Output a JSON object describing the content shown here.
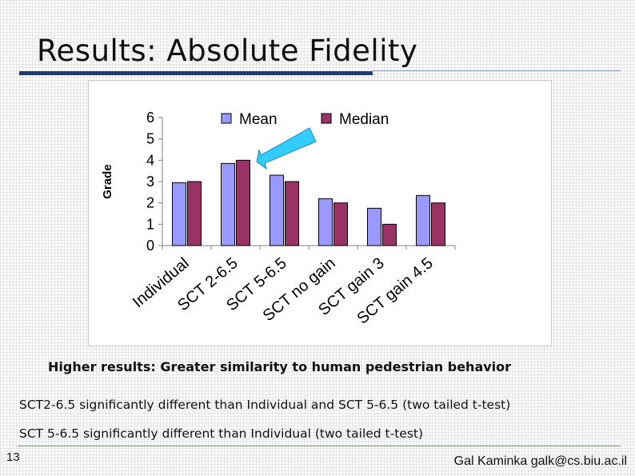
{
  "slide": {
    "title": "Results: Absolute Fidelity",
    "caption": "Higher results: Greater similarity to human pedestrian behavior",
    "notes": [
      "SCT2-6.5 significantly different than Individual and SCT 5-6.5 (two tailed t-test)",
      "SCT 5-6.5 significantly different than Individual (two tailed t-test)"
    ],
    "page_number": "13",
    "footer": "Gal Kaminka galk@cs.biu.ac.il"
  },
  "chart_data": {
    "type": "bar",
    "categories": [
      "Individual",
      "SCT 2-6.5",
      "SCT 5-6.5",
      "SCT no gain",
      "SCT gain 3",
      "SCT gain 4.5"
    ],
    "series": [
      {
        "name": "Mean",
        "values": [
          2.95,
          3.85,
          3.3,
          2.2,
          1.75,
          2.35
        ],
        "color": "#9999ff"
      },
      {
        "name": "Median",
        "values": [
          3,
          4,
          3,
          2,
          1,
          2
        ],
        "color": "#993366"
      }
    ],
    "ylabel": "Grade",
    "xlabel": "",
    "ylim": [
      0,
      6
    ],
    "yticks": [
      "0",
      "1",
      "2",
      "3",
      "4",
      "5",
      "6"
    ],
    "legend": "top",
    "grid": false,
    "annotation": {
      "type": "arrow",
      "points_to": "SCT 2-6.5",
      "color": "#33ccff"
    }
  }
}
